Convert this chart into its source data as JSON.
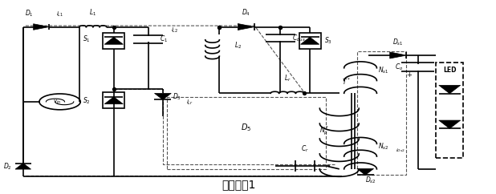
{
  "title": "工作模态1",
  "title_fontsize": 10,
  "bg_color": "#ffffff",
  "line_color": "#000000",
  "dashed_color": "#555555",
  "fig_width": 6.18,
  "fig_height": 2.42
}
